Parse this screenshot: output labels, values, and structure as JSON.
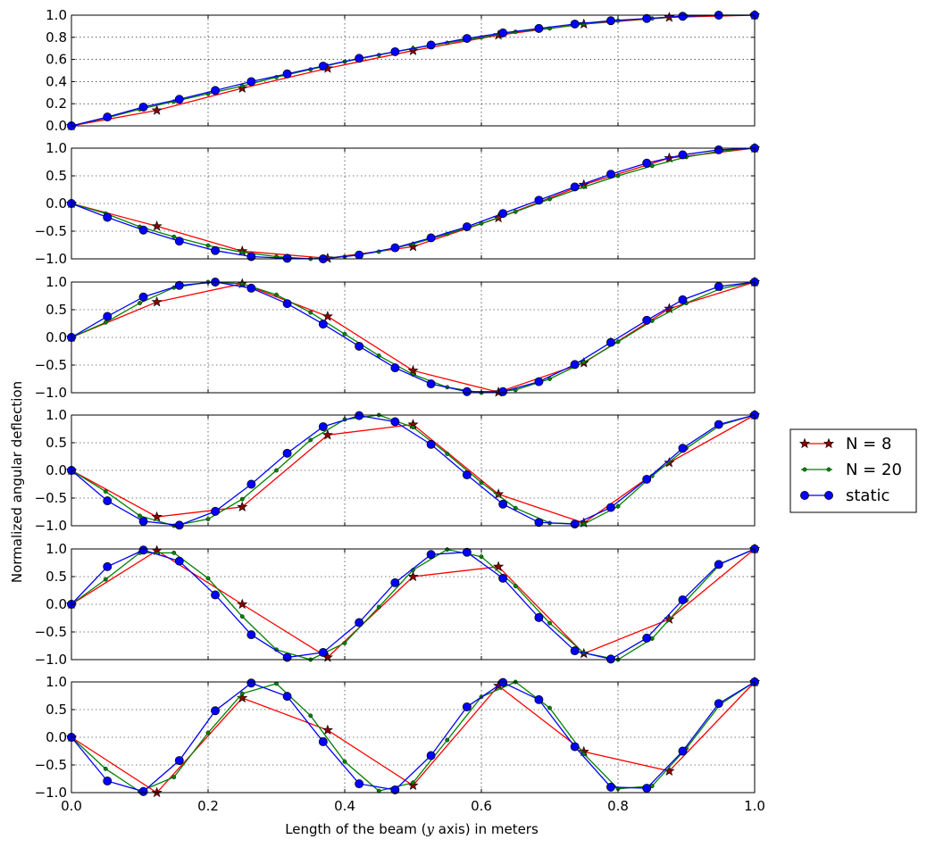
{
  "figure": {
    "ylabel": "Normalized angular deflection",
    "xlabel_before": "Length of the beam (",
    "xlabel_math": "y",
    "xlabel_after": " axis) in meters"
  },
  "chart_data": {
    "type": "line",
    "xlim": [
      0.0,
      1.0
    ],
    "ylim": [
      -1.0,
      1.0
    ],
    "grid": true,
    "legend_placement": "center-right",
    "x_tick_labels": [
      "0.0",
      "0.2",
      "0.4",
      "0.6",
      "0.8",
      "1.0"
    ],
    "series_styles": [
      {
        "name": "N = 8",
        "color": "#ff0000",
        "marker": "star",
        "marker_fill": "#8b0000"
      },
      {
        "name": "N = 20",
        "color": "#008000",
        "marker": "small-dot",
        "marker_fill": "#008000"
      },
      {
        "name": "static",
        "color": "#0000ff",
        "marker": "circle",
        "marker_fill": "#0000ff"
      }
    ],
    "panels": [
      {
        "mode": 1,
        "ylim": [
          0.0,
          1.0
        ],
        "y_tick_labels": [
          "0.0",
          "0.2",
          "0.4",
          "0.6",
          "0.8",
          "1.0"
        ],
        "series": [
          {
            "name": "N = 8",
            "x": [
              0,
              0.125,
              0.25,
              0.375,
              0.5,
              0.625,
              0.75,
              0.875,
              1.0
            ],
            "y": [
              0.0,
              0.14,
              0.34,
              0.52,
              0.68,
              0.82,
              0.92,
              0.98,
              1.0
            ]
          },
          {
            "name": "N = 20",
            "x": [
              0,
              0.05,
              0.1,
              0.15,
              0.2,
              0.25,
              0.3,
              0.35,
              0.4,
              0.45,
              0.5,
              0.55,
              0.6,
              0.65,
              0.7,
              0.75,
              0.8,
              0.85,
              0.9,
              0.95,
              1.0
            ],
            "y": [
              0.0,
              0.07,
              0.15,
              0.22,
              0.29,
              0.36,
              0.44,
              0.51,
              0.58,
              0.64,
              0.7,
              0.75,
              0.8,
              0.85,
              0.88,
              0.92,
              0.95,
              0.97,
              0.99,
              1.0,
              1.0
            ]
          },
          {
            "name": "static",
            "x": [
              0,
              0.0526,
              0.1053,
              0.1579,
              0.2105,
              0.2632,
              0.3158,
              0.3684,
              0.4211,
              0.4737,
              0.5263,
              0.5789,
              0.6316,
              0.6842,
              0.7368,
              0.7895,
              0.8421,
              0.8947,
              0.9474,
              1.0
            ],
            "y": [
              0.0,
              0.08,
              0.17,
              0.24,
              0.32,
              0.4,
              0.47,
              0.54,
              0.61,
              0.67,
              0.73,
              0.79,
              0.84,
              0.88,
              0.92,
              0.95,
              0.97,
              0.99,
              1.0,
              1.0
            ]
          }
        ]
      },
      {
        "mode": 2,
        "ylim": [
          -1.0,
          1.0
        ],
        "y_tick_labels": [
          "-1.0",
          "-0.5",
          "0.0",
          "0.5",
          "1.0"
        ],
        "series": [
          {
            "name": "N = 8",
            "x": [
              0,
              0.125,
              0.25,
              0.375,
              0.5,
              0.625,
              0.75,
              0.875,
              1.0
            ],
            "y": [
              0.0,
              -0.41,
              -0.86,
              -0.99,
              -0.78,
              -0.26,
              0.34,
              0.82,
              1.0
            ]
          },
          {
            "name": "N = 20",
            "x": [
              0,
              0.05,
              0.1,
              0.15,
              0.2,
              0.25,
              0.3,
              0.35,
              0.4,
              0.45,
              0.5,
              0.55,
              0.6,
              0.65,
              0.7,
              0.75,
              0.8,
              0.85,
              0.9,
              0.95,
              1.0
            ],
            "y": [
              0.0,
              -0.18,
              -0.42,
              -0.6,
              -0.76,
              -0.88,
              -0.96,
              -1.0,
              -0.96,
              -0.87,
              -0.73,
              -0.55,
              -0.36,
              -0.15,
              0.08,
              0.3,
              0.5,
              0.68,
              0.84,
              0.95,
              1.0
            ]
          },
          {
            "name": "static",
            "x": [
              0,
              0.0526,
              0.1053,
              0.1579,
              0.2105,
              0.2632,
              0.3158,
              0.3684,
              0.4211,
              0.4737,
              0.5263,
              0.5789,
              0.6316,
              0.6842,
              0.7368,
              0.7895,
              0.8421,
              0.8947,
              0.9474,
              1.0
            ],
            "y": [
              0.0,
              -0.25,
              -0.48,
              -0.68,
              -0.85,
              -0.96,
              -0.99,
              -1.0,
              -0.93,
              -0.8,
              -0.62,
              -0.42,
              -0.18,
              0.06,
              0.3,
              0.53,
              0.73,
              0.88,
              0.97,
              1.0
            ]
          }
        ]
      },
      {
        "mode": 3,
        "ylim": [
          -1.0,
          1.0
        ],
        "y_tick_labels": [
          "-1.0",
          "-0.5",
          "0.0",
          "0.5",
          "1.0"
        ],
        "series": [
          {
            "name": "N = 8",
            "x": [
              0,
              0.125,
              0.25,
              0.375,
              0.5,
              0.625,
              0.75,
              0.875,
              1.0
            ],
            "y": [
              0.0,
              0.64,
              0.97,
              0.38,
              -0.6,
              -0.99,
              -0.46,
              0.52,
              1.0
            ]
          },
          {
            "name": "N = 20",
            "x": [
              0,
              0.05,
              0.1,
              0.15,
              0.2,
              0.25,
              0.3,
              0.35,
              0.4,
              0.45,
              0.5,
              0.55,
              0.6,
              0.65,
              0.7,
              0.75,
              0.8,
              0.85,
              0.9,
              0.95,
              1.0
            ],
            "y": [
              0.0,
              0.27,
              0.62,
              0.9,
              1.0,
              0.97,
              0.77,
              0.45,
              0.06,
              -0.33,
              -0.67,
              -0.9,
              -1.0,
              -0.95,
              -0.75,
              -0.45,
              -0.08,
              0.3,
              0.62,
              0.88,
              1.0
            ]
          },
          {
            "name": "static",
            "x": [
              0,
              0.0526,
              0.1053,
              0.1579,
              0.2105,
              0.2632,
              0.3158,
              0.3684,
              0.4211,
              0.4737,
              0.5263,
              0.5789,
              0.6316,
              0.6842,
              0.7368,
              0.7895,
              0.8421,
              0.8947,
              0.9474,
              1.0
            ],
            "y": [
              0.0,
              0.38,
              0.73,
              0.94,
              1.0,
              0.89,
              0.61,
              0.24,
              -0.16,
              -0.55,
              -0.84,
              -0.98,
              -0.98,
              -0.8,
              -0.49,
              -0.09,
              0.31,
              0.68,
              0.92,
              1.0
            ]
          }
        ]
      },
      {
        "mode": 4,
        "ylim": [
          -1.0,
          1.0
        ],
        "y_tick_labels": [
          "-1.0",
          "-0.5",
          "0.0",
          "0.5",
          "1.0"
        ],
        "series": [
          {
            "name": "N = 8",
            "x": [
              0,
              0.125,
              0.25,
              0.375,
              0.5,
              0.625,
              0.75,
              0.875,
              1.0
            ],
            "y": [
              0.0,
              -0.84,
              -0.66,
              0.64,
              0.83,
              -0.43,
              -0.95,
              0.14,
              1.0
            ]
          },
          {
            "name": "N = 20",
            "x": [
              0,
              0.05,
              0.1,
              0.15,
              0.2,
              0.25,
              0.3,
              0.35,
              0.4,
              0.45,
              0.5,
              0.55,
              0.6,
              0.65,
              0.7,
              0.75,
              0.8,
              0.85,
              0.9,
              0.95,
              1.0
            ],
            "y": [
              0.0,
              -0.38,
              -0.82,
              -1.0,
              -0.88,
              -0.52,
              0.0,
              0.55,
              0.92,
              1.0,
              0.78,
              0.3,
              -0.22,
              -0.68,
              -0.95,
              -0.97,
              -0.65,
              -0.1,
              0.4,
              0.82,
              1.0
            ]
          },
          {
            "name": "static",
            "x": [
              0,
              0.0526,
              0.1053,
              0.1579,
              0.2105,
              0.2632,
              0.3158,
              0.3684,
              0.4211,
              0.4737,
              0.5263,
              0.5789,
              0.6316,
              0.6842,
              0.7368,
              0.7895,
              0.8421,
              0.8947,
              0.9474,
              1.0
            ],
            "y": [
              0.0,
              -0.55,
              -0.92,
              -0.99,
              -0.74,
              -0.25,
              0.31,
              0.79,
              0.99,
              0.88,
              0.47,
              -0.08,
              -0.61,
              -0.94,
              -0.97,
              -0.67,
              -0.16,
              0.4,
              0.83,
              1.0
            ]
          }
        ]
      },
      {
        "mode": 5,
        "ylim": [
          -1.0,
          1.0
        ],
        "y_tick_labels": [
          "-1.0",
          "-0.5",
          "0.0",
          "0.5",
          "1.0"
        ],
        "series": [
          {
            "name": "N = 8",
            "x": [
              0,
              0.125,
              0.25,
              0.375,
              0.5,
              0.625,
              0.75,
              0.875,
              1.0
            ],
            "y": [
              0.0,
              0.97,
              0.0,
              -0.96,
              0.5,
              0.68,
              -0.89,
              -0.27,
              1.0
            ]
          },
          {
            "name": "N = 20",
            "x": [
              0,
              0.05,
              0.1,
              0.15,
              0.2,
              0.25,
              0.3,
              0.35,
              0.4,
              0.45,
              0.5,
              0.55,
              0.6,
              0.65,
              0.7,
              0.75,
              0.8,
              0.85,
              0.9,
              0.95,
              1.0
            ],
            "y": [
              0.0,
              0.45,
              0.93,
              0.93,
              0.47,
              -0.22,
              -0.82,
              -1.0,
              -0.7,
              -0.05,
              0.62,
              0.99,
              0.86,
              0.33,
              -0.34,
              -0.88,
              -1.0,
              -0.62,
              0.07,
              0.73,
              1.0
            ]
          },
          {
            "name": "static",
            "x": [
              0,
              0.0526,
              0.1053,
              0.1579,
              0.2105,
              0.2632,
              0.3158,
              0.3684,
              0.4211,
              0.4737,
              0.5263,
              0.5789,
              0.6316,
              0.6842,
              0.7368,
              0.7895,
              0.8421,
              0.8947,
              0.9474,
              1.0
            ],
            "y": [
              0.0,
              0.68,
              0.98,
              0.78,
              0.17,
              -0.55,
              -0.96,
              -0.87,
              -0.33,
              0.39,
              0.9,
              0.94,
              0.47,
              -0.24,
              -0.84,
              -0.99,
              -0.61,
              0.08,
              0.72,
              1.0
            ]
          }
        ]
      },
      {
        "mode": 6,
        "ylim": [
          -1.0,
          1.0
        ],
        "y_tick_labels": [
          "-1.0",
          "-0.5",
          "0.0",
          "0.5",
          "1.0"
        ],
        "series": [
          {
            "name": "N = 8",
            "x": [
              0,
              0.125,
              0.25,
              0.375,
              0.5,
              0.625,
              0.75,
              0.875,
              1.0
            ],
            "y": [
              0.0,
              -1.0,
              0.71,
              0.13,
              -0.87,
              0.93,
              -0.26,
              -0.61,
              1.0
            ]
          },
          {
            "name": "N = 20",
            "x": [
              0,
              0.05,
              0.1,
              0.15,
              0.2,
              0.25,
              0.3,
              0.35,
              0.4,
              0.45,
              0.5,
              0.55,
              0.6,
              0.65,
              0.7,
              0.75,
              0.8,
              0.85,
              0.9,
              0.95,
              1.0
            ],
            "y": [
              0.0,
              -0.57,
              -0.98,
              -0.72,
              0.08,
              0.79,
              0.97,
              0.39,
              -0.44,
              -0.97,
              -0.82,
              -0.05,
              0.73,
              1.0,
              0.53,
              -0.3,
              -0.93,
              -0.88,
              -0.2,
              0.6,
              1.0
            ]
          },
          {
            "name": "static",
            "x": [
              0,
              0.0526,
              0.1053,
              0.1579,
              0.2105,
              0.2632,
              0.3158,
              0.3684,
              0.4211,
              0.4737,
              0.5263,
              0.5789,
              0.6316,
              0.6842,
              0.7368,
              0.7895,
              0.8421,
              0.8947,
              0.9474,
              1.0
            ],
            "y": [
              0.0,
              -0.79,
              -0.98,
              -0.42,
              0.48,
              0.98,
              0.74,
              -0.08,
              -0.84,
              -0.95,
              -0.33,
              0.55,
              0.99,
              0.68,
              -0.17,
              -0.9,
              -0.92,
              -0.25,
              0.61,
              1.0
            ]
          }
        ]
      }
    ],
    "legend": [
      {
        "label": "N = 8"
      },
      {
        "label": "N = 20"
      },
      {
        "label": "static"
      }
    ]
  }
}
